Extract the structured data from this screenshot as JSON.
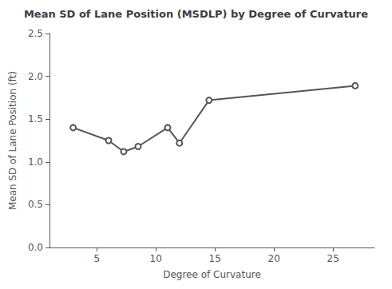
{
  "chart_data": {
    "type": "line",
    "title": "Mean SD of Lane Position (MSDLP) by Degree of Curvature",
    "xlabel": "Degree of Curvature",
    "ylabel": "Mean SD of Lane Position (ft)",
    "x": [
      3.0,
      6.0,
      7.28,
      8.5,
      11.0,
      12.0,
      14.5,
      26.87
    ],
    "values": [
      1.4,
      1.25,
      1.12,
      1.18,
      1.4,
      1.22,
      1.72,
      1.89
    ],
    "xlim": [
      1.0,
      28.5
    ],
    "ylim": [
      0.0,
      2.5
    ],
    "xticks": [
      5,
      10,
      15,
      20,
      25
    ],
    "yticks": [
      {
        "value": 0.0,
        "label": "0.0"
      },
      0.5,
      {
        "value": 1.0,
        "label": "1.0"
      },
      1.5,
      {
        "value": 2.0,
        "label": "2.0"
      },
      2.5
    ],
    "color": "#555555",
    "marker": "circle",
    "grid": false
  }
}
